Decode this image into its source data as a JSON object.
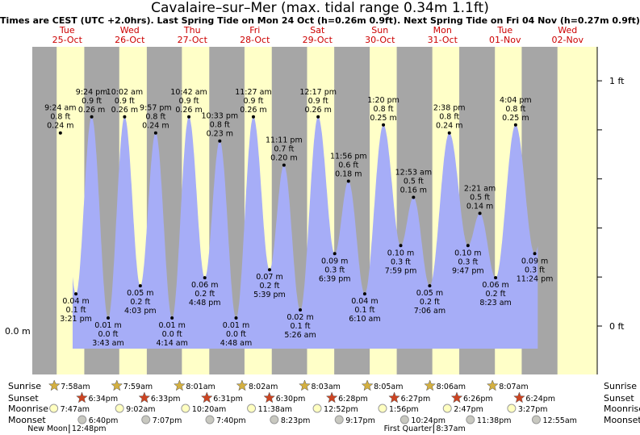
{
  "title": "Cavalaire–sur–Mer (max. tidal range 0.34m 1.1ft)",
  "subtitle": "Times are CEST (UTC +2.0hrs). Last Spring Tide on Mon 24 Oct (h=0.26m 0.9ft). Next Spring Tide on Fri 04 Nov (h=0.27m 0.9ft)",
  "chart_data": {
    "type": "area",
    "colors": {
      "tide": "#a6adf7",
      "night": "#a6a6a6",
      "day": "#ffffc8",
      "label": "#cc0000"
    },
    "ylim": [
      -0.02,
      0.34
    ],
    "axis_labels": {
      "left": "0.0 m",
      "right_0": "0 ft",
      "right_1": "1 ft"
    },
    "days": [
      {
        "dow": "Tue",
        "date": "25-Oct"
      },
      {
        "dow": "Wed",
        "date": "26-Oct"
      },
      {
        "dow": "Thu",
        "date": "27-Oct"
      },
      {
        "dow": "Fri",
        "date": "28-Oct"
      },
      {
        "dow": "Sat",
        "date": "29-Oct"
      },
      {
        "dow": "Sun",
        "date": "30-Oct"
      },
      {
        "dow": "Mon",
        "date": "31-Oct"
      },
      {
        "dow": "Tue",
        "date": "01-Nov"
      },
      {
        "dow": "Wed",
        "date": "02-Nov"
      }
    ],
    "tides": [
      {
        "day": 0,
        "time": "9:24 am",
        "h": 0.24,
        "ft": "0.8 ft",
        "m": "0.24 m"
      },
      {
        "day": 0,
        "time": "3:21 pm",
        "h": 0.04,
        "ft": "0.1 ft",
        "m": "0.04 m"
      },
      {
        "day": 0,
        "time": "9:24 pm",
        "h": 0.26,
        "ft": "0.9 ft",
        "m": "0.26 m"
      },
      {
        "day": 1,
        "time": "3:43 am",
        "h": 0.01,
        "ft": "0.0 ft",
        "m": "0.01 m"
      },
      {
        "day": 1,
        "time": "10:02 am",
        "h": 0.26,
        "ft": "0.9 ft",
        "m": "0.26 m"
      },
      {
        "day": 1,
        "time": "4:03 pm",
        "h": 0.05,
        "ft": "0.2 ft",
        "m": "0.05 m"
      },
      {
        "day": 1,
        "time": "9:57 pm",
        "h": 0.24,
        "ft": "0.8 ft",
        "m": "0.24 m"
      },
      {
        "day": 2,
        "time": "4:14 am",
        "h": 0.01,
        "ft": "0.0 ft",
        "m": "0.01 m"
      },
      {
        "day": 2,
        "time": "10:42 am",
        "h": 0.26,
        "ft": "0.9 ft",
        "m": "0.26 m"
      },
      {
        "day": 2,
        "time": "4:48 pm",
        "h": 0.06,
        "ft": "0.2 ft",
        "m": "0.06 m"
      },
      {
        "day": 2,
        "time": "10:33 pm",
        "h": 0.23,
        "ft": "0.8 ft",
        "m": "0.23 m"
      },
      {
        "day": 3,
        "time": "4:48 am",
        "h": 0.01,
        "ft": "0.0 ft",
        "m": "0.01 m"
      },
      {
        "day": 3,
        "time": "11:27 am",
        "h": 0.26,
        "ft": "0.9 ft",
        "m": "0.26 m"
      },
      {
        "day": 3,
        "time": "5:39 pm",
        "h": 0.07,
        "ft": "0.2 ft",
        "m": "0.07 m"
      },
      {
        "day": 3,
        "time": "11:11 pm",
        "h": 0.2,
        "ft": "0.7 ft",
        "m": "0.20 m"
      },
      {
        "day": 4,
        "time": "5:26 am",
        "h": 0.02,
        "ft": "0.1 ft",
        "m": "0.02 m"
      },
      {
        "day": 4,
        "time": "12:17 pm",
        "h": 0.26,
        "ft": "0.9 ft",
        "m": "0.26 m"
      },
      {
        "day": 4,
        "time": "6:39 pm",
        "h": 0.09,
        "ft": "0.3 ft",
        "m": "0.09 m"
      },
      {
        "day": 4,
        "time": "11:56 pm",
        "h": 0.18,
        "ft": "0.6 ft",
        "m": "0.18 m"
      },
      {
        "day": 5,
        "time": "6:10 am",
        "h": 0.04,
        "ft": "0.1 ft",
        "m": "0.04 m"
      },
      {
        "day": 5,
        "time": "1:20 pm",
        "h": 0.25,
        "ft": "0.8 ft",
        "m": "0.25 m"
      },
      {
        "day": 5,
        "time": "7:59 pm",
        "h": 0.1,
        "ft": "0.3 ft",
        "m": "0.10 m"
      },
      {
        "day": 6,
        "time": "12:53 am",
        "h": 0.16,
        "ft": "0.5 ft",
        "m": "0.16 m"
      },
      {
        "day": 6,
        "time": "7:06 am",
        "h": 0.05,
        "ft": "0.2 ft",
        "m": "0.05 m"
      },
      {
        "day": 6,
        "time": "2:38 pm",
        "h": 0.24,
        "ft": "0.8 ft",
        "m": "0.24 m"
      },
      {
        "day": 6,
        "time": "9:47 pm",
        "h": 0.1,
        "ft": "0.3 ft",
        "m": "0.10 m"
      },
      {
        "day": 7,
        "time": "2:21 am",
        "h": 0.14,
        "ft": "0.5 ft",
        "m": "0.14 m"
      },
      {
        "day": 7,
        "time": "8:23 am",
        "h": 0.06,
        "ft": "0.2 ft",
        "m": "0.06 m"
      },
      {
        "day": 7,
        "time": "4:04 pm",
        "h": 0.25,
        "ft": "0.8 ft",
        "m": "0.25 m"
      },
      {
        "day": 7,
        "time": "11:24 pm",
        "h": 0.09,
        "ft": "0.3 ft",
        "m": "0.09 m"
      }
    ],
    "sunrise": [
      "7:58am",
      "7:59am",
      "8:01am",
      "8:02am",
      "8:03am",
      "8:05am",
      "8:06am",
      "8:07am"
    ],
    "sunset": [
      "6:34pm",
      "6:33pm",
      "6:31pm",
      "6:30pm",
      "6:28pm",
      "6:27pm",
      "6:26pm",
      "6:24pm"
    ],
    "moonrise": [
      {
        "day": 0,
        "time": "7:47am"
      },
      {
        "day": 1,
        "time": "9:02am"
      },
      {
        "day": 2,
        "time": "10:20am"
      },
      {
        "day": 3,
        "time": "11:38am"
      },
      {
        "day": 4,
        "time": "12:52pm"
      },
      {
        "day": 5,
        "time": "1:56pm"
      },
      {
        "day": 6,
        "time": "2:47pm"
      },
      {
        "day": 7,
        "time": "3:27pm"
      }
    ],
    "moonset": [
      {
        "day": 0,
        "time": "6:40pm"
      },
      {
        "day": 1,
        "time": "7:07pm"
      },
      {
        "day": 2,
        "time": "7:40pm"
      },
      {
        "day": 3,
        "time": "8:23pm"
      },
      {
        "day": 4,
        "time": "9:17pm"
      },
      {
        "day": 5,
        "time": "10:24pm"
      },
      {
        "day": 6,
        "time": "11:38pm"
      },
      {
        "day": 8,
        "time": "12:55am"
      }
    ],
    "phases": [
      {
        "day": 0,
        "time": "12:48pm",
        "label": "New Moon"
      },
      {
        "day": 6,
        "time": "8:37am",
        "label": "First Quarter"
      }
    ],
    "row_labels": {
      "sunrise": "Sunrise",
      "sunset": "Sunset",
      "moonrise": "Moonrise",
      "moonset": "Moonset"
    }
  }
}
